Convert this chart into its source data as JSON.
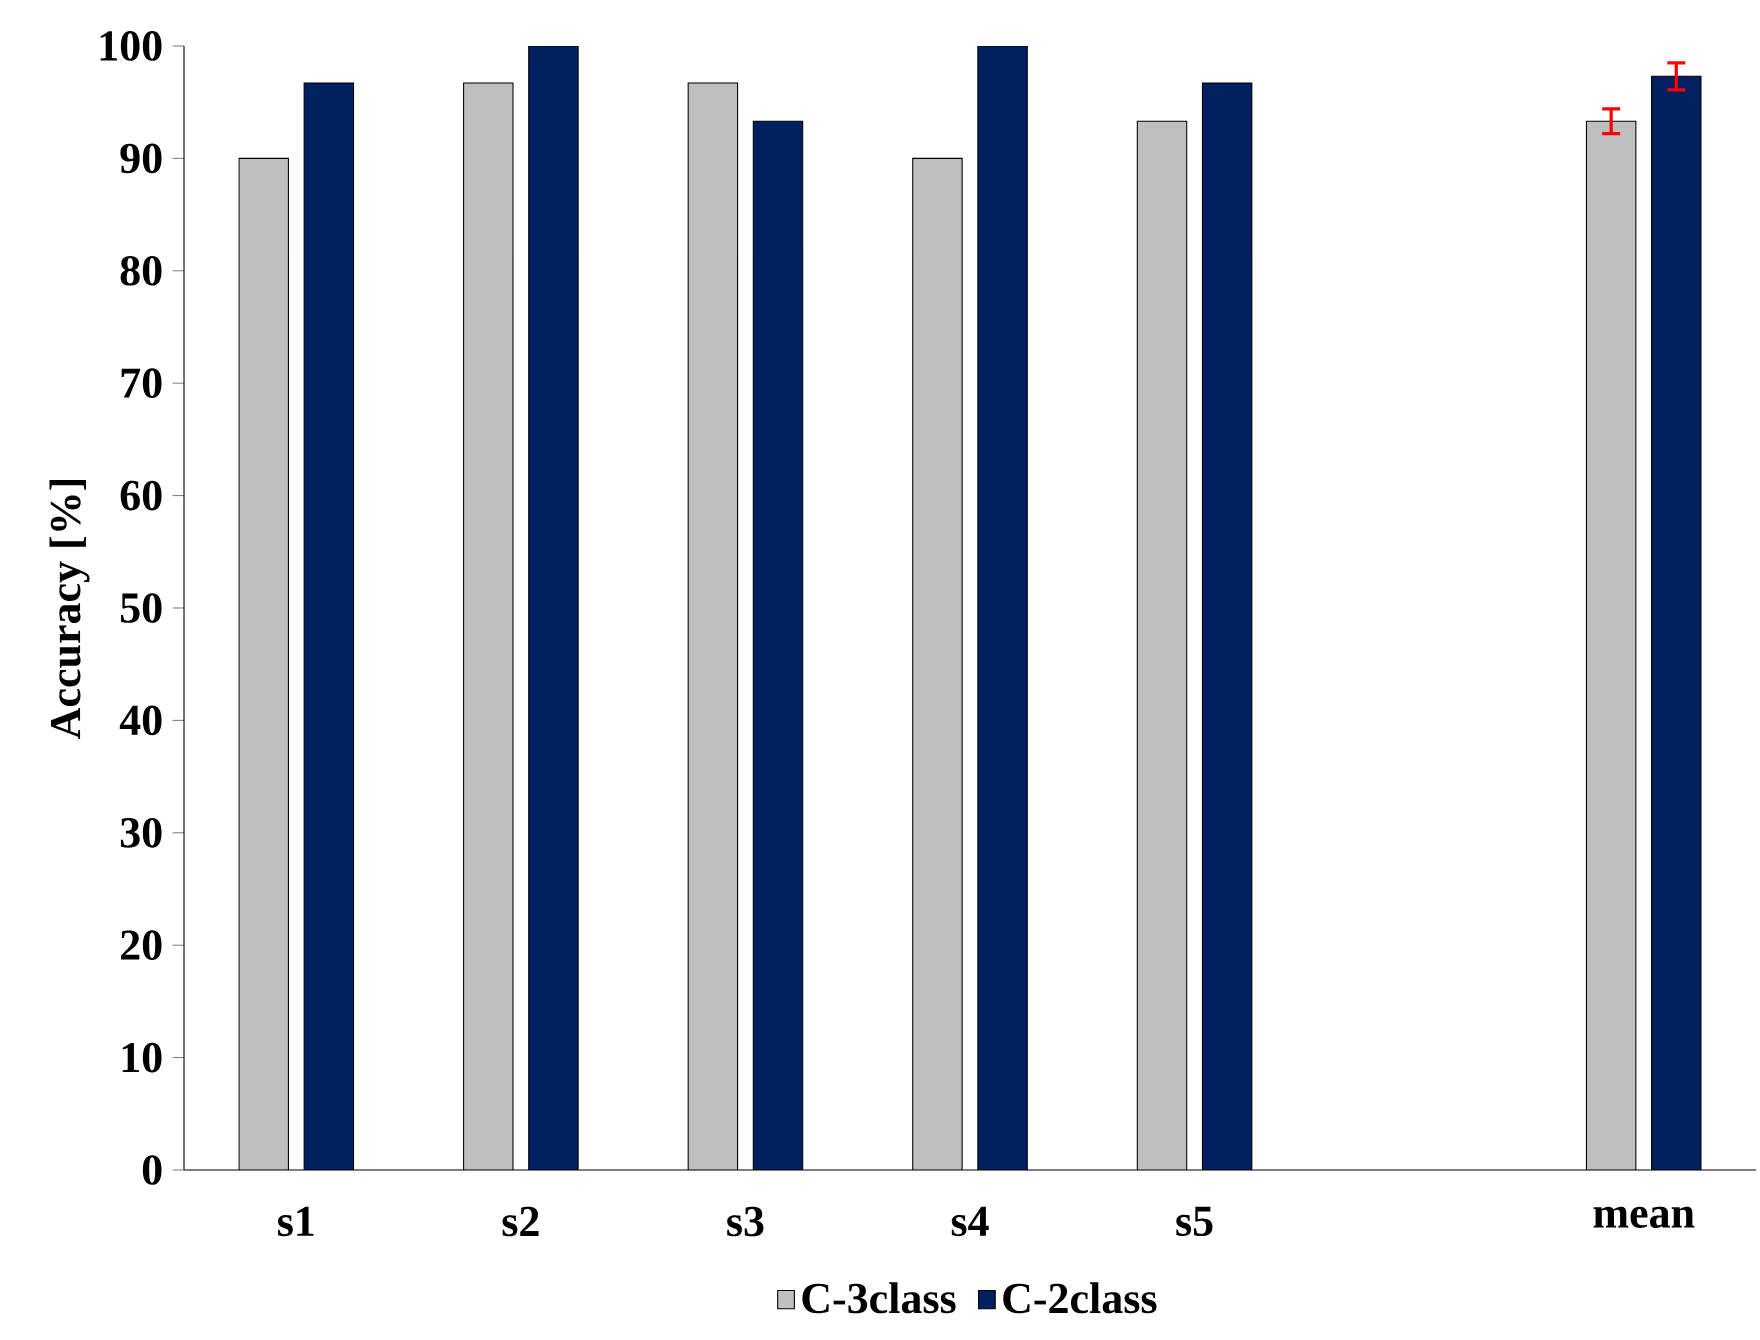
{
  "chart_data": {
    "type": "bar",
    "ylabel": "Accuracy [%]",
    "categories": [
      "s1",
      "s2",
      "s3",
      "s4",
      "s5",
      null,
      "mean"
    ],
    "series": [
      {
        "name": "C-3class",
        "color": "#bfbfbf",
        "values": [
          90,
          96.7,
          96.7,
          90,
          93.3,
          null,
          93.3
        ],
        "errors": [
          null,
          null,
          null,
          null,
          null,
          null,
          1.1
        ]
      },
      {
        "name": "C-2class",
        "color": "#002060",
        "values": [
          96.7,
          100,
          93.3,
          100,
          96.7,
          null,
          97.3
        ],
        "errors": [
          null,
          null,
          null,
          null,
          null,
          null,
          1.2
        ]
      }
    ],
    "ylim": [
      0,
      100
    ],
    "yticks": [
      0,
      10,
      20,
      30,
      40,
      50,
      60,
      70,
      80,
      90,
      100
    ],
    "grid": false,
    "legend": "bottom"
  }
}
